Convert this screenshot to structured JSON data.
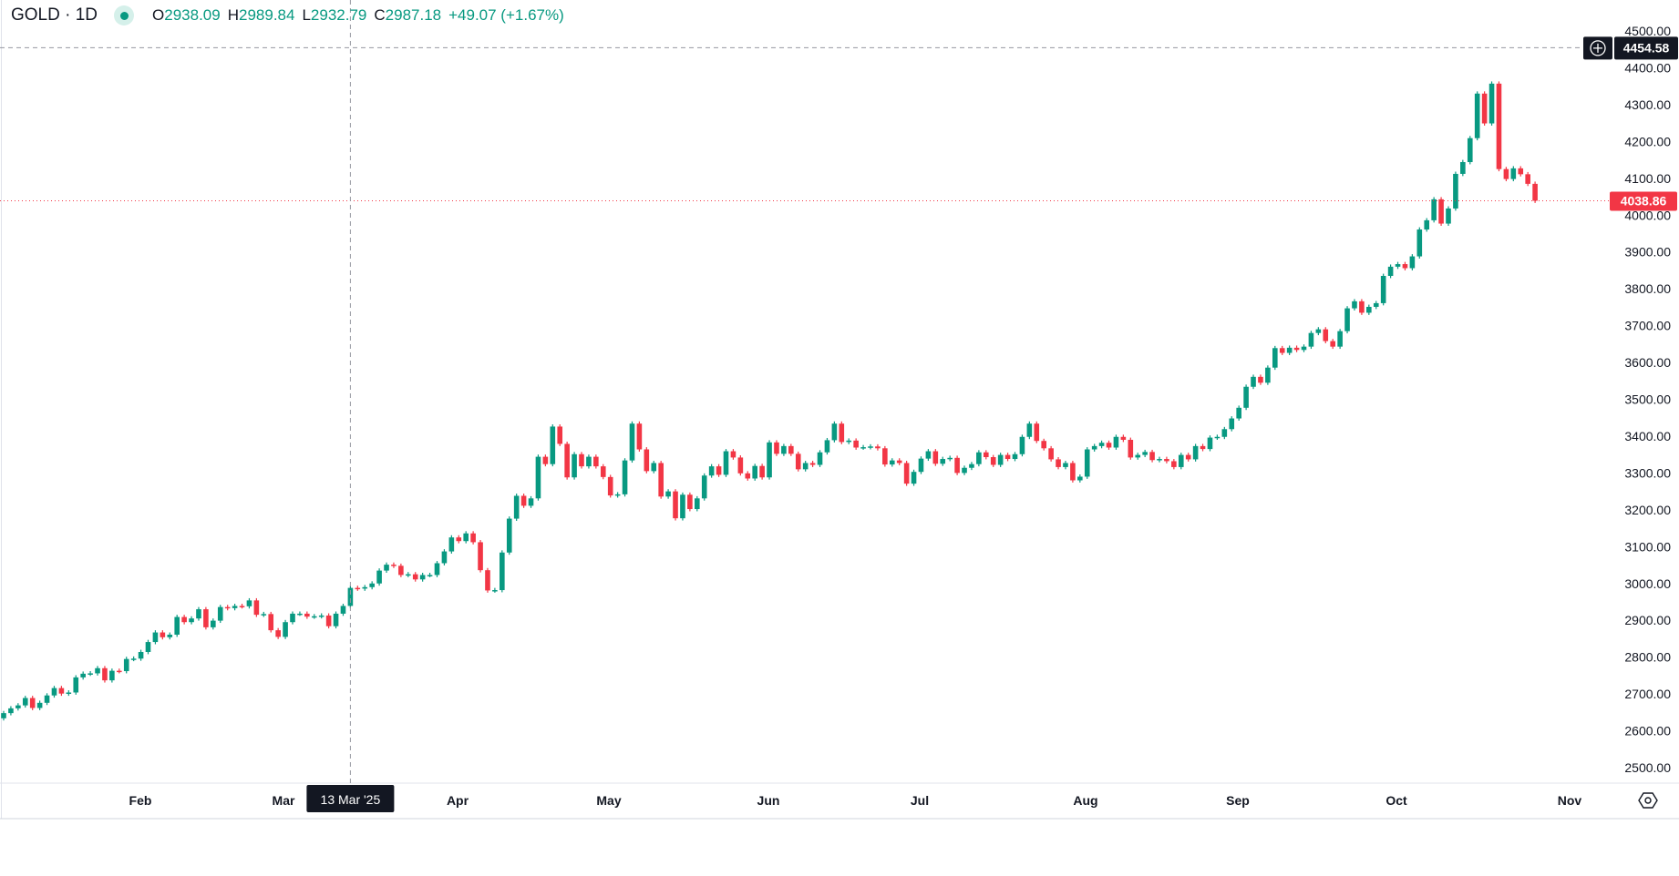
{
  "legend": {
    "symbol": "GOLD · 1D",
    "open_key": "O",
    "open": "2938.09",
    "high_key": "H",
    "high": "2989.84",
    "low_key": "L",
    "low": "2932.79",
    "close_key": "C",
    "close": "2987.18",
    "change": "+49.07 (+1.67%)"
  },
  "colors": {
    "up": "#089981",
    "down": "#f23645",
    "crosshair_label_bg": "#131722"
  },
  "price_axis": {
    "ticks": [
      "4500.00",
      "4400.00",
      "4300.00",
      "4200.00",
      "4100.00",
      "4000.00",
      "3900.00",
      "3800.00",
      "3700.00",
      "3600.00",
      "3500.00",
      "3400.00",
      "3300.00",
      "3200.00",
      "3100.00",
      "3000.00",
      "2900.00",
      "2800.00",
      "2700.00",
      "2600.00",
      "2500.00"
    ],
    "crosshair_price_label": "4454.58",
    "last_price_label": "4038.86",
    "add_button_icon": "plus-circle-icon"
  },
  "time_axis": {
    "ticks": [
      "Feb",
      "Mar",
      "Apr",
      "May",
      "Jun",
      "Jul",
      "Aug",
      "Sep",
      "Oct",
      "Nov"
    ],
    "crosshair_date_label": "13 Mar '25",
    "settings_icon": "gear-hexagon-icon"
  },
  "chart_data": {
    "type": "candlestick",
    "symbol": "GOLD",
    "interval": "1D",
    "ylim": [
      2500,
      4500
    ],
    "y_tick_step": 100,
    "crosshair": {
      "date": "13 Mar '25",
      "price": 4454.58,
      "candle_index": 48
    },
    "last_price": 4038.86,
    "first_open": 2634,
    "close": [
      2648,
      2661,
      2669,
      2689,
      2662,
      2676,
      2696,
      2716,
      2701,
      2704,
      2745,
      2755,
      2756,
      2770,
      2737,
      2763,
      2762,
      2795,
      2796,
      2814,
      2841,
      2867,
      2854,
      2861,
      2909,
      2895,
      2905,
      2930,
      2881,
      2899,
      2936,
      2933,
      2939,
      2938,
      2954,
      2915,
      2917,
      2873,
      2855,
      2895,
      2918,
      2918,
      2910,
      2911,
      2913,
      2884,
      2918,
      2939,
      2988,
      2986,
      2990,
      3000,
      3035,
      3051,
      3048,
      3023,
      3025,
      3011,
      3023,
      3023,
      3055,
      3087,
      3125,
      3115,
      3136,
      3112,
      3036,
      2981,
      2982,
      3084,
      3176,
      3238,
      3211,
      3231,
      3344,
      3324,
      3426,
      3379,
      3288,
      3351,
      3318,
      3344,
      3318,
      3289,
      3239,
      3242,
      3334,
      3434,
      3364,
      3305,
      3327,
      3236,
      3250,
      3177,
      3241,
      3202,
      3231,
      3293,
      3318,
      3295,
      3359,
      3342,
      3299,
      3285,
      3319,
      3288,
      3383,
      3352,
      3373,
      3352,
      3310,
      3327,
      3322,
      3356,
      3389,
      3434,
      3384,
      3388,
      3369,
      3370,
      3372,
      3367,
      3323,
      3334,
      3327,
      3271,
      3303,
      3339,
      3359,
      3325,
      3338,
      3341,
      3300,
      3314,
      3324,
      3356,
      3343,
      3322,
      3349,
      3338,
      3351,
      3398,
      3434,
      3387,
      3367,
      3337,
      3316,
      3327,
      3280,
      3290,
      3364,
      3373,
      3382,
      3369,
      3398,
      3390,
      3342,
      3349,
      3357,
      3335,
      3338,
      3332,
      3316,
      3349,
      3337,
      3373,
      3365,
      3396,
      3398,
      3419,
      3448,
      3477,
      3534,
      3561,
      3545,
      3586,
      3639,
      3626,
      3640,
      3634,
      3643,
      3680,
      3690,
      3658,
      3643,
      3685,
      3747,
      3766,
      3735,
      3751,
      3761,
      3835,
      3860,
      3867,
      3856,
      3888,
      3961,
      3986,
      4043,
      3977,
      4018,
      4112,
      4144,
      4209,
      4330,
      4249,
      4357,
      4125,
      4098,
      4127,
      4111,
      4085,
      4039
    ]
  }
}
